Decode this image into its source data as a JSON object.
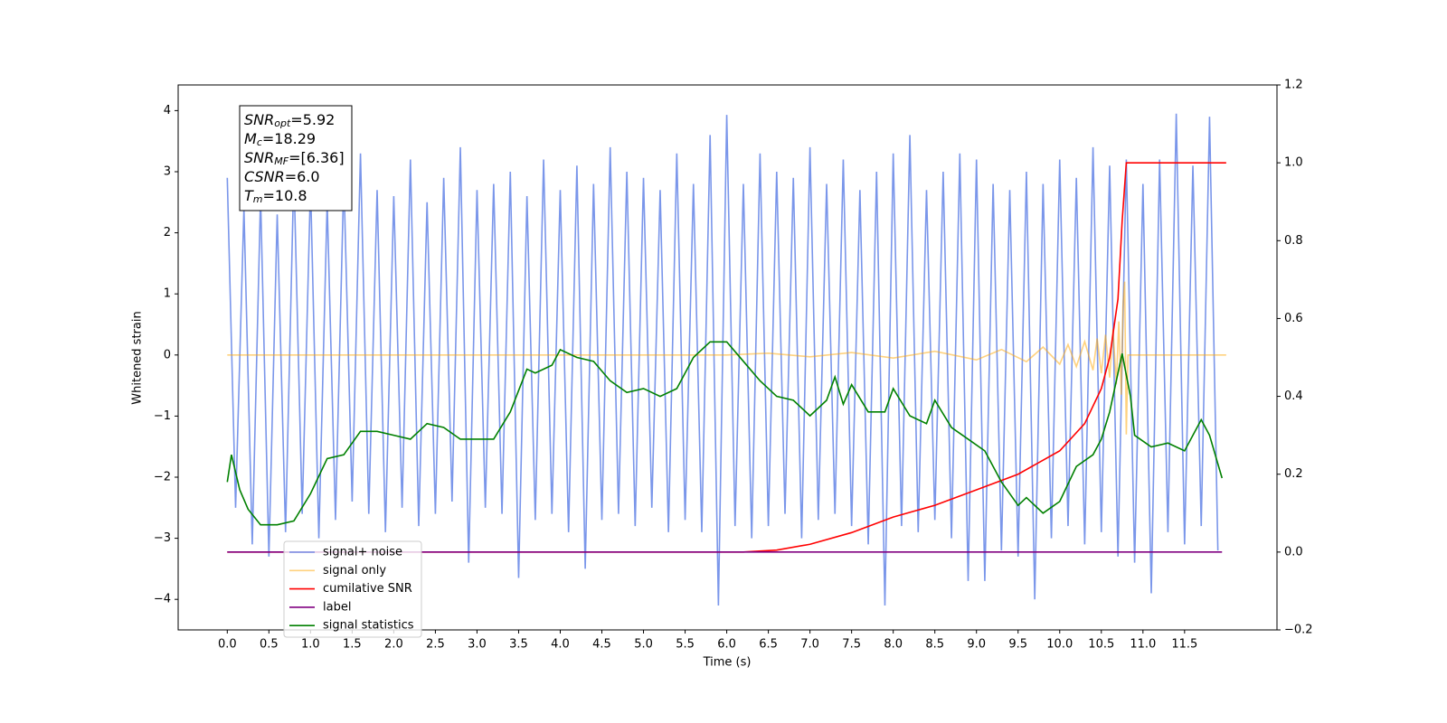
{
  "chart_data": {
    "type": "line",
    "xlabel": "Time (s)",
    "ylabel": "Whitened strain",
    "xlim": [
      -0.59,
      12.61
    ],
    "ylim": [
      -4.5,
      4.42
    ],
    "y2lim": [
      -0.2,
      1.2
    ],
    "xticks": [
      {
        "value": 0,
        "label": "0.0"
      },
      0.5,
      {
        "value": 1,
        "label": "1.0"
      },
      1.5,
      {
        "value": 2,
        "label": "2.0"
      },
      2.5,
      {
        "value": 3,
        "label": "3.0"
      },
      3.5,
      {
        "value": 4,
        "label": "4.0"
      },
      4.5,
      {
        "value": 5,
        "label": "5.0"
      },
      5.5,
      {
        "value": 6,
        "label": "6.0"
      },
      6.5,
      {
        "value": 7,
        "label": "7.0"
      },
      7.5,
      {
        "value": 8,
        "label": "8.0"
      },
      8.5,
      {
        "value": 9,
        "label": "9.0"
      },
      9.5,
      {
        "value": 10,
        "label": "10.0"
      },
      10.5,
      {
        "value": 11,
        "label": "11.0"
      },
      11.5
    ],
    "yticks": [
      {
        "value": -4,
        "label": "−4"
      },
      {
        "value": -3,
        "label": "−3"
      },
      {
        "value": -2,
        "label": "−2"
      },
      {
        "value": -1,
        "label": "−1"
      },
      0,
      1,
      2,
      3,
      4
    ],
    "y2ticks": [
      {
        "value": -0.2,
        "label": "−0.2"
      },
      {
        "value": 0,
        "label": "0.0"
      },
      0.2,
      0.4,
      0.6,
      0.8,
      {
        "value": 1,
        "label": "1.0"
      },
      1.2
    ],
    "annotation": [
      {
        "text": "SNR",
        "sub": "opt",
        "rest": "=5.92"
      },
      {
        "text": "M",
        "sub": "c",
        "rest": "=18.29"
      },
      {
        "text": "SNR",
        "sub": "MF",
        "rest": "=[6.36]"
      },
      {
        "text": "CSNR",
        "rest": "=6.0"
      },
      {
        "text": "T",
        "sub": "m",
        "rest": "=10.8"
      }
    ],
    "series": [
      {
        "name": "signal+ noise",
        "color": "#4169e1",
        "alpha": 0.7,
        "x": [
          0,
          0.1,
          0.2,
          0.3,
          0.4,
          0.5,
          0.6,
          0.7,
          0.8,
          0.9,
          1,
          1.1,
          1.2,
          1.3,
          1.4,
          1.5,
          1.6,
          1.7,
          1.8,
          1.9,
          2,
          2.1,
          2.2,
          2.3,
          2.4,
          2.5,
          2.6,
          2.7,
          2.8,
          2.9,
          3,
          3.1,
          3.2,
          3.3,
          3.4,
          3.5,
          3.6,
          3.7,
          3.8,
          3.9,
          4,
          4.1,
          4.2,
          4.3,
          4.4,
          4.5,
          4.6,
          4.7,
          4.8,
          4.9,
          5,
          5.1,
          5.2,
          5.3,
          5.4,
          5.5,
          5.6,
          5.7,
          5.8,
          5.9,
          6,
          6.1,
          6.2,
          6.3,
          6.4,
          6.5,
          6.6,
          6.7,
          6.8,
          6.9,
          7,
          7.1,
          7.2,
          7.3,
          7.4,
          7.5,
          7.6,
          7.7,
          7.8,
          7.9,
          8,
          8.1,
          8.2,
          8.3,
          8.4,
          8.5,
          8.6,
          8.7,
          8.8,
          8.9,
          9,
          9.1,
          9.2,
          9.3,
          9.4,
          9.5,
          9.6,
          9.7,
          9.8,
          9.9,
          10,
          10.1,
          10.2,
          10.3,
          10.4,
          10.5,
          10.6,
          10.7,
          10.8,
          10.9,
          11,
          11.1,
          11.2,
          11.3,
          11.4,
          11.5,
          11.6,
          11.7,
          11.8,
          11.9
        ],
        "values": [
          2.9,
          -2.5,
          2.4,
          -3.1,
          2.6,
          -3.3,
          2.3,
          -2.9,
          3.0,
          -2.6,
          2.8,
          -3.0,
          2.5,
          -2.7,
          2.9,
          -2.4,
          3.3,
          -2.6,
          2.7,
          -2.9,
          2.6,
          -2.5,
          3.2,
          -2.8,
          2.5,
          -2.6,
          2.9,
          -2.4,
          3.4,
          -3.4,
          2.7,
          -2.5,
          2.8,
          -2.6,
          3.0,
          -3.65,
          2.6,
          -2.7,
          3.2,
          -2.6,
          2.7,
          -2.9,
          3.1,
          -3.5,
          2.8,
          -2.7,
          3.4,
          -2.6,
          3.0,
          -2.8,
          2.9,
          -2.5,
          2.7,
          -2.9,
          3.3,
          -2.7,
          2.8,
          -2.9,
          3.6,
          -4.1,
          3.93,
          -2.8,
          2.8,
          -3.0,
          3.3,
          -2.8,
          3.0,
          -2.6,
          2.9,
          -3.0,
          3.4,
          -2.7,
          2.8,
          -2.6,
          3.2,
          -2.8,
          2.7,
          -3.1,
          3.0,
          -4.1,
          3.3,
          -2.8,
          3.6,
          -2.9,
          2.7,
          -2.7,
          3.0,
          -3.0,
          3.3,
          -3.7,
          3.2,
          -3.7,
          2.8,
          -3.2,
          2.7,
          -3.3,
          3.0,
          -4.0,
          2.8,
          -3.0,
          3.2,
          -2.8,
          2.9,
          -3.1,
          3.4,
          -2.9,
          3.1,
          -3.3,
          3.2,
          -3.4,
          2.8,
          -3.9,
          3.2,
          -2.9,
          3.95,
          -3.1,
          3.1,
          -2.8,
          3.9,
          -3.2
        ]
      },
      {
        "name": "signal only",
        "color": "#ffa500",
        "alpha": 0.5,
        "x": [
          0,
          6.0,
          6.5,
          7.0,
          7.5,
          8.0,
          8.5,
          9.0,
          9.3,
          9.6,
          9.8,
          10.0,
          10.1,
          10.2,
          10.3,
          10.4,
          10.45,
          10.5,
          10.55,
          10.6,
          10.64,
          10.68,
          10.71,
          10.74,
          10.76,
          10.78,
          10.8,
          10.82,
          12.0
        ],
        "values": [
          0,
          0,
          0.03,
          -0.03,
          0.04,
          -0.05,
          0.06,
          -0.08,
          0.09,
          -0.11,
          0.13,
          -0.15,
          0.17,
          -0.19,
          0.22,
          -0.25,
          0.27,
          -0.3,
          0.33,
          -0.37,
          0.42,
          -0.48,
          0.55,
          -0.65,
          0.8,
          1.2,
          -1.3,
          0,
          0
        ]
      },
      {
        "name": "cumilative SNR",
        "color": "#ff0000",
        "alpha": 1,
        "axis": "y2",
        "x": [
          0,
          6.2,
          6.6,
          7.0,
          7.5,
          8.0,
          8.5,
          9.0,
          9.5,
          10.0,
          10.3,
          10.5,
          10.6,
          10.7,
          10.75,
          10.8,
          12.0
        ],
        "values": [
          0,
          0,
          0.005,
          0.02,
          0.05,
          0.09,
          0.12,
          0.16,
          0.2,
          0.26,
          0.33,
          0.42,
          0.5,
          0.65,
          0.85,
          1.0,
          1.0
        ]
      },
      {
        "name": "label",
        "color": "#800080",
        "alpha": 1,
        "axis": "y2",
        "x": [
          0,
          11.95
        ],
        "values": [
          0,
          0
        ]
      },
      {
        "name": "signal statistics",
        "color": "#008000",
        "alpha": 1,
        "axis": "y2",
        "x": [
          0,
          0.05,
          0.15,
          0.25,
          0.4,
          0.6,
          0.8,
          1.0,
          1.2,
          1.4,
          1.6,
          1.8,
          2.0,
          2.2,
          2.4,
          2.6,
          2.8,
          3.0,
          3.2,
          3.4,
          3.6,
          3.7,
          3.9,
          4.0,
          4.2,
          4.4,
          4.6,
          4.8,
          5.0,
          5.2,
          5.4,
          5.6,
          5.8,
          6.0,
          6.2,
          6.4,
          6.6,
          6.8,
          7.0,
          7.2,
          7.3,
          7.4,
          7.5,
          7.7,
          7.9,
          8.0,
          8.2,
          8.4,
          8.5,
          8.7,
          8.9,
          9.1,
          9.3,
          9.5,
          9.6,
          9.8,
          10.0,
          10.2,
          10.4,
          10.5,
          10.6,
          10.75,
          10.85,
          10.9,
          11.1,
          11.3,
          11.5,
          11.6,
          11.7,
          11.8,
          11.95
        ],
        "values": [
          0.18,
          0.25,
          0.16,
          0.11,
          0.07,
          0.07,
          0.08,
          0.15,
          0.24,
          0.25,
          0.31,
          0.31,
          0.3,
          0.29,
          0.33,
          0.32,
          0.29,
          0.29,
          0.29,
          0.36,
          0.47,
          0.46,
          0.48,
          0.52,
          0.5,
          0.49,
          0.44,
          0.41,
          0.42,
          0.4,
          0.42,
          0.5,
          0.54,
          0.54,
          0.49,
          0.44,
          0.4,
          0.39,
          0.35,
          0.39,
          0.45,
          0.38,
          0.43,
          0.36,
          0.36,
          0.42,
          0.35,
          0.33,
          0.39,
          0.32,
          0.29,
          0.26,
          0.18,
          0.12,
          0.14,
          0.1,
          0.13,
          0.22,
          0.25,
          0.29,
          0.36,
          0.51,
          0.4,
          0.3,
          0.27,
          0.28,
          0.26,
          0.3,
          0.34,
          0.3,
          0.19
        ]
      }
    ]
  }
}
